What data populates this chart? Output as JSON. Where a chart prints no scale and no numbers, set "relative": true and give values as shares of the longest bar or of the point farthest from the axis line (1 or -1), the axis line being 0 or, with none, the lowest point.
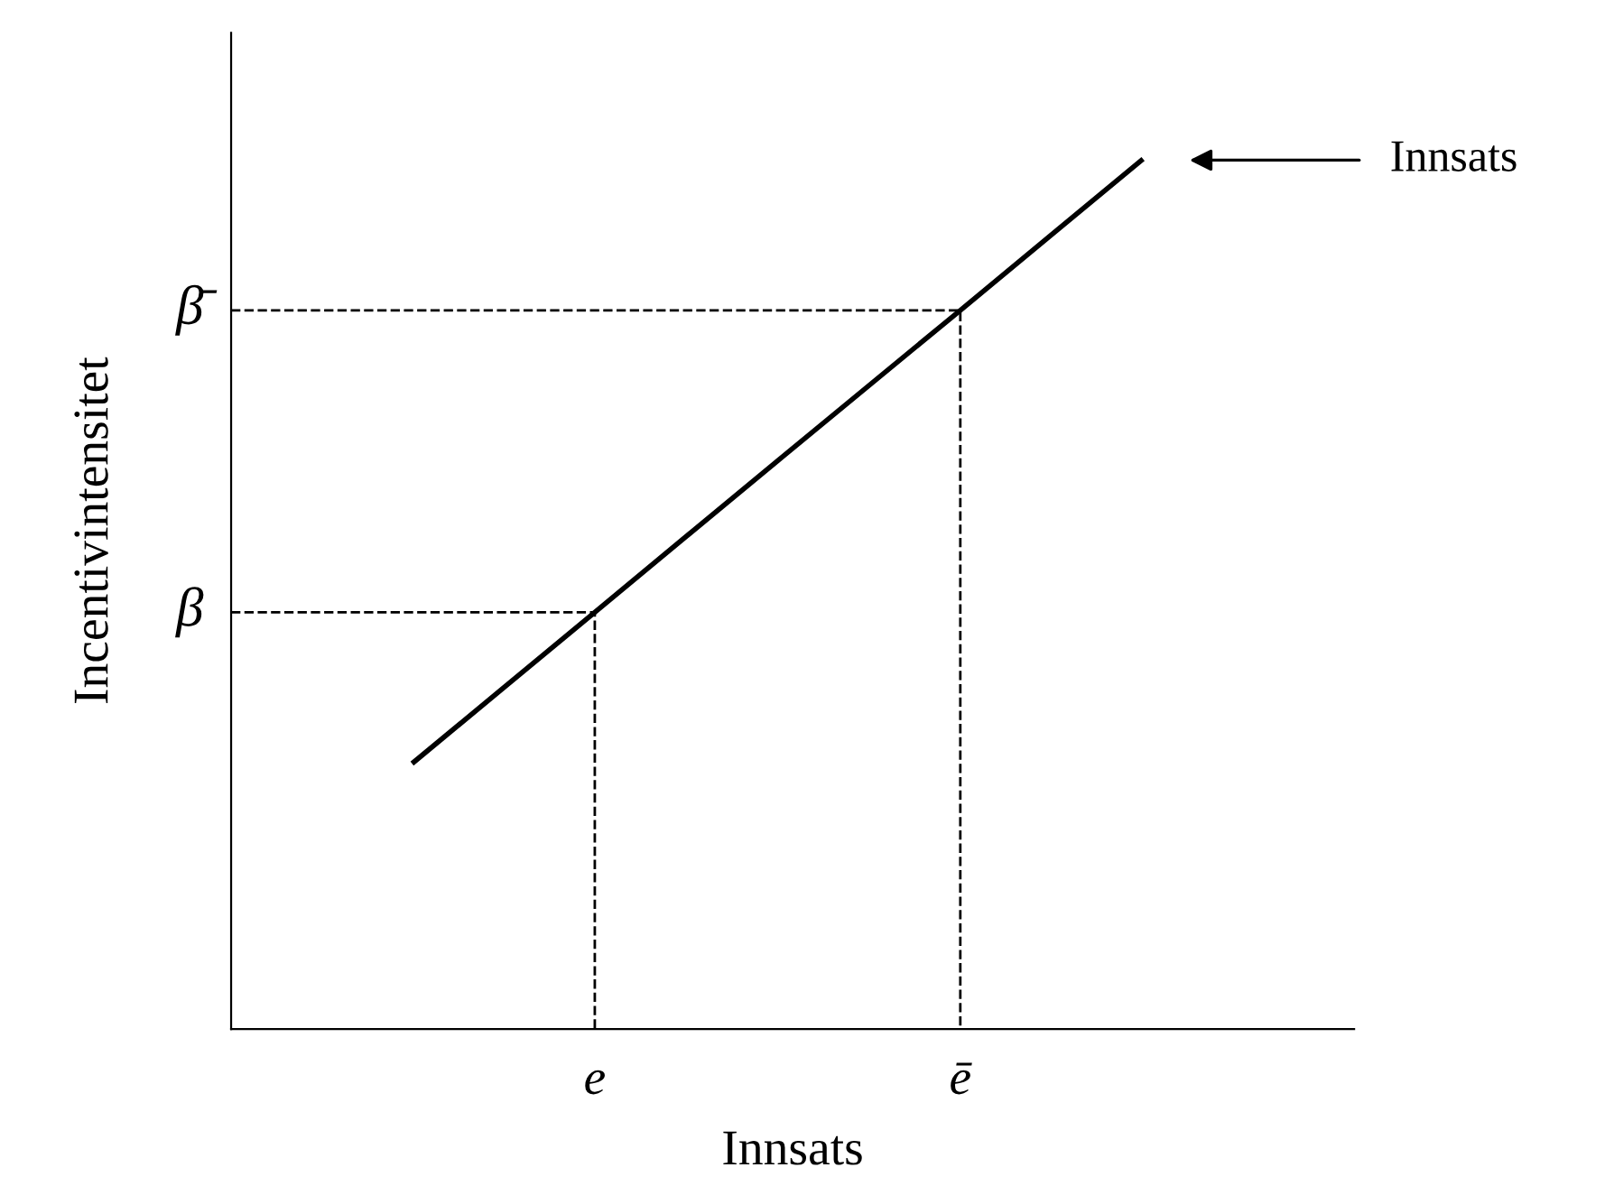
{
  "chart_data": {
    "type": "line",
    "relative": true,
    "xlabel": "Innsats",
    "ylabel": "Incentivintensitet",
    "categories": [
      null,
      "e",
      null,
      "ē",
      null
    ],
    "series": [
      {
        "color": "#000000",
        "values": [
          0.305,
          0.479,
          0.653,
          0.826,
          1
        ],
        "line_style": "solid"
      }
    ],
    "ref_lines": [
      {
        "axis": "y",
        "value": 0.479,
        "label": "β",
        "color": "#000000",
        "line_style": "dashed"
      },
      {
        "axis": "y",
        "value": 0.826,
        "label": "β̄",
        "color": "#000000",
        "line_style": "dashed"
      }
    ],
    "annotations": [
      "Innsats"
    ]
  }
}
